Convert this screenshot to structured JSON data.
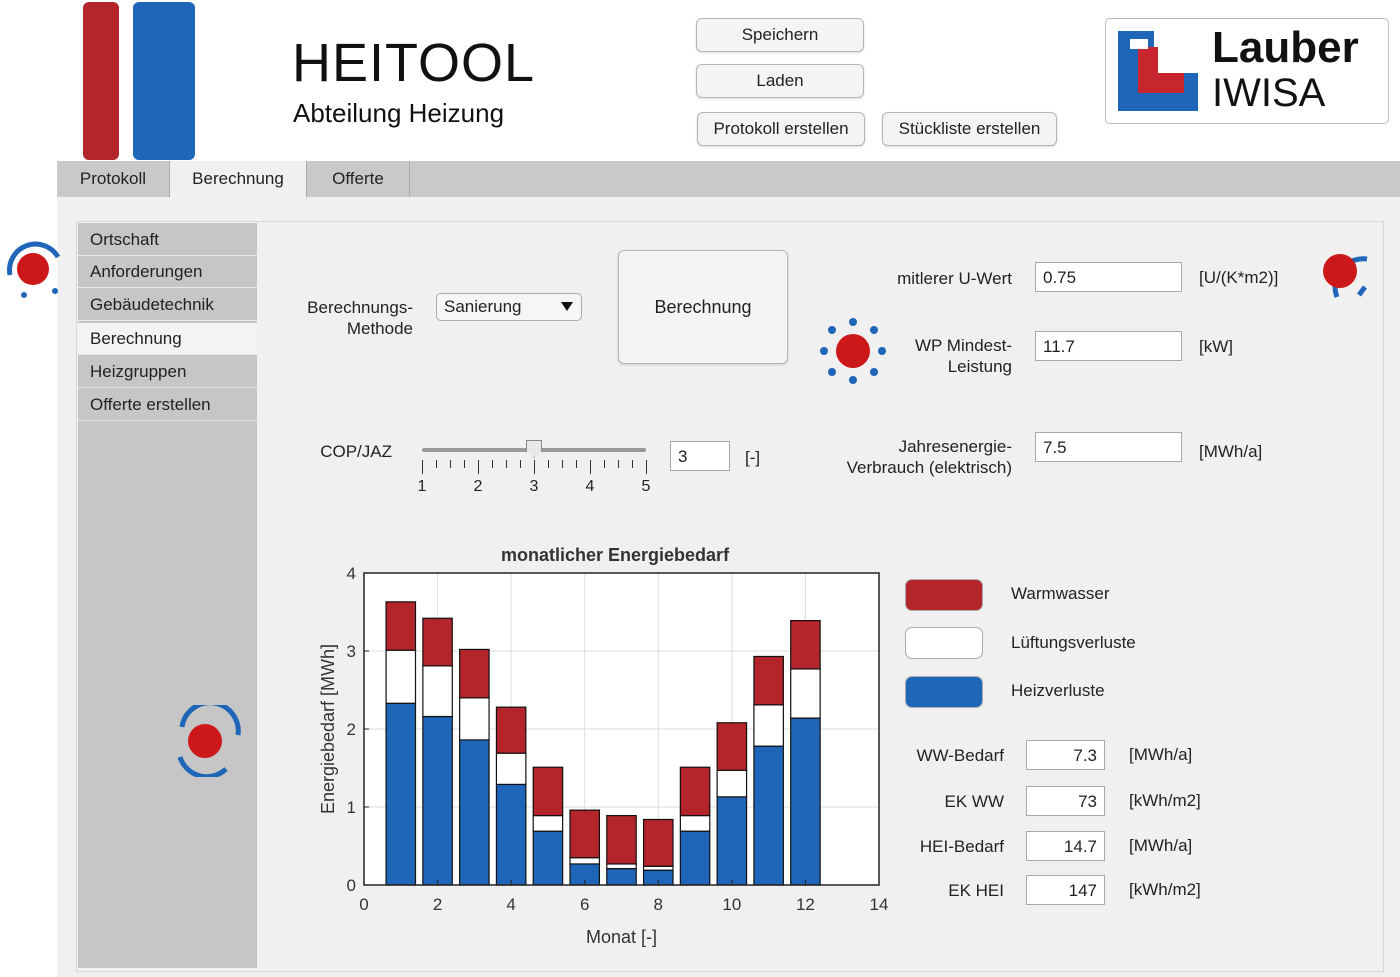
{
  "header": {
    "title": "HEITOOL",
    "subtitle": "Abteilung Heizung",
    "logo_text_1": "Lauber",
    "logo_text_2": "IWISA"
  },
  "toolbar": {
    "save_label": "Speichern",
    "load_label": "Laden",
    "protocol_label": "Protokoll erstellen",
    "parts_list_label": "Stückliste erstellen"
  },
  "tabs": [
    {
      "label": "Protokoll",
      "active": false
    },
    {
      "label": "Berechnung",
      "active": true
    },
    {
      "label": "Offerte",
      "active": false
    }
  ],
  "sidebar": {
    "items": [
      {
        "label": "Ortschaft",
        "active": false
      },
      {
        "label": "Anforderungen",
        "active": false
      },
      {
        "label": "Gebäudetechnik",
        "active": false
      },
      {
        "label": "Berechnung",
        "active": true
      },
      {
        "label": "Heizgruppen",
        "active": false
      },
      {
        "label": "Offerte erstellen",
        "active": false
      }
    ]
  },
  "calc": {
    "method_label_1": "Berechnungs-",
    "method_label_2": "Methode",
    "method_value": "Sanierung",
    "calc_button": "Berechnung",
    "cop_label": "COP/JAZ",
    "cop_value": "3",
    "cop_unit": "[-]",
    "cop_slider": {
      "min": 1,
      "max": 5,
      "value": 3,
      "ticks": [
        "1",
        "2",
        "3",
        "4",
        "5"
      ]
    }
  },
  "results": {
    "u_label": "mitlerer U-Wert",
    "u_value": "0.75",
    "u_unit": "[U/(K*m2)]",
    "wp_label_1": "WP Mindest-",
    "wp_label_2": "Leistung",
    "wp_value": "11.7",
    "wp_unit": "[kW]",
    "energy_label_1": "Jahresenergie-",
    "energy_label_2": "Verbrauch (elektrisch)",
    "energy_value": "7.5",
    "energy_unit": "[MWh/a]"
  },
  "summary": {
    "ww_label": "WW-Bedarf",
    "ww_value": "7.3",
    "ww_unit": "[MWh/a]",
    "ekww_label": "EK WW",
    "ekww_value": "73",
    "ekww_unit": "[kWh/m2]",
    "hei_label": "HEI-Bedarf",
    "hei_value": "14.7",
    "hei_unit": "[MWh/a]",
    "ekhei_label": "EK HEI",
    "ekhei_value": "147",
    "ekhei_unit": "[kWh/m2]"
  },
  "colors": {
    "red": "#b3242b",
    "blue": "#1f65b8",
    "white": "#ffffff"
  },
  "chart_data": {
    "type": "bar",
    "stacked": true,
    "title": "monatlicher Energiebedarf",
    "xlabel": "Monat [-]",
    "ylabel": "Energiebedarf [MWh]",
    "xlim": [
      0,
      14
    ],
    "ylim": [
      0,
      4
    ],
    "xticks": [
      0,
      2,
      4,
      6,
      8,
      10,
      12,
      14
    ],
    "yticks": [
      0,
      1,
      2,
      3,
      4
    ],
    "grid": true,
    "legend_position": "right",
    "x": [
      1,
      2,
      3,
      4,
      5,
      6,
      7,
      8,
      9,
      10,
      11,
      12
    ],
    "series": [
      {
        "name": "Heizverluste",
        "color": "#1f65b8",
        "values": [
          2.33,
          2.16,
          1.86,
          1.29,
          0.69,
          0.27,
          0.21,
          0.19,
          0.69,
          1.13,
          1.78,
          2.14
        ]
      },
      {
        "name": "Lüftungsverluste",
        "color": "#ffffff",
        "values": [
          0.68,
          0.65,
          0.54,
          0.4,
          0.2,
          0.08,
          0.06,
          0.05,
          0.2,
          0.34,
          0.53,
          0.63
        ]
      },
      {
        "name": "Warmwasser",
        "color": "#b3242b",
        "values": [
          0.62,
          0.61,
          0.62,
          0.59,
          0.62,
          0.61,
          0.62,
          0.6,
          0.62,
          0.61,
          0.62,
          0.62
        ]
      }
    ]
  }
}
